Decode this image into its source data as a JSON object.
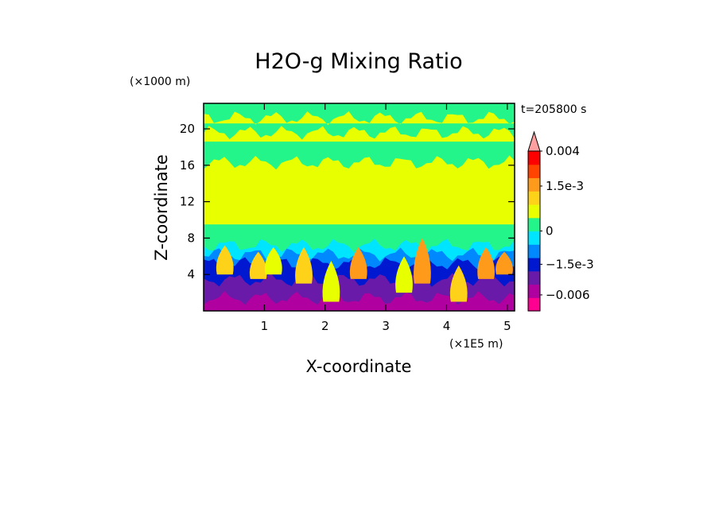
{
  "chart_data": {
    "type": "heatmap",
    "title": "H2O-g Mixing Ratio",
    "xlabel": "X-coordinate",
    "ylabel": "Z-coordinate",
    "x_scale_label": "(×1E5 m)",
    "y_scale_label": "(×1000 m)",
    "time_label": "t=205800 s",
    "xlim": [
      0,
      5.12
    ],
    "ylim": [
      0,
      22.8
    ],
    "x_ticks": [
      "1",
      "2",
      "3",
      "4",
      "5"
    ],
    "y_ticks": [
      "4",
      "8",
      "12",
      "16",
      "20"
    ],
    "x_tick_values": [
      1,
      2,
      3,
      4,
      5
    ],
    "y_tick_values": [
      4,
      8,
      12,
      16,
      20
    ],
    "colorbar": {
      "labels": [
        "0.004",
        "1.5e-3",
        "0",
        "−1.5e-3",
        "−0.006"
      ],
      "label_values": [
        0.004,
        0.0015,
        0,
        -0.0015,
        -0.006
      ],
      "levels": [
        {
          "color": "#ff0090",
          "from": -0.009,
          "to": -0.0065
        },
        {
          "color": "#b0009f",
          "from": -0.0065,
          "to": -0.004
        },
        {
          "color": "#6a1aa8",
          "from": -0.004,
          "to": -0.002
        },
        {
          "color": "#0018d0",
          "from": -0.002,
          "to": -0.001
        },
        {
          "color": "#0088ff",
          "from": -0.001,
          "to": -0.0005
        },
        {
          "color": "#00e5ff",
          "from": -0.0005,
          "to": 0
        },
        {
          "color": "#23f58a",
          "from": 0,
          "to": 0.0003
        },
        {
          "color": "#e8ff00",
          "from": 0.0003,
          "to": 0.0007
        },
        {
          "color": "#ffd21a",
          "from": 0.0007,
          "to": 0.0012
        },
        {
          "color": "#ff9a1a",
          "from": 0.0012,
          "to": 0.002
        },
        {
          "color": "#ff4400",
          "from": 0.002,
          "to": 0.003
        },
        {
          "color": "#ff0000",
          "from": 0.003,
          "to": 0.004
        },
        {
          "color": "#ff9fa0",
          "from": 0.004,
          "to": 0.005
        }
      ]
    },
    "field_layers": [
      {
        "color": "#23f58a",
        "z_bottom": 0,
        "z_top": 22.8
      },
      {
        "color": "#e8ff00",
        "z_bottom": 9.5,
        "z_top": 16.3
      },
      {
        "color": "#e8ff00",
        "z_bottom": 18.6,
        "z_top": 19.6
      },
      {
        "color": "#e8ff00",
        "z_bottom": 20.6,
        "z_top": 21.2
      },
      {
        "color": "#00e5ff",
        "z_bottom": 0,
        "z_top": 7.2
      },
      {
        "color": "#0088ff",
        "z_bottom": 0,
        "z_top": 6.2
      },
      {
        "color": "#0018d0",
        "z_bottom": 0,
        "z_top": 5.2
      },
      {
        "color": "#6a1aa8",
        "z_bottom": 0,
        "z_top": 3.4
      },
      {
        "color": "#b0009f",
        "z_bottom": 0,
        "z_top": 1.4
      }
    ],
    "plumes": [
      {
        "x": 0.35,
        "z_bottom": 4.0,
        "z_top": 7.2,
        "color": "#ffd21a"
      },
      {
        "x": 0.9,
        "z_bottom": 3.5,
        "z_top": 6.5,
        "color": "#ffd21a"
      },
      {
        "x": 1.15,
        "z_bottom": 4.0,
        "z_top": 7.0,
        "color": "#e8ff00"
      },
      {
        "x": 1.65,
        "z_bottom": 3.0,
        "z_top": 7.0,
        "color": "#ffd21a"
      },
      {
        "x": 2.1,
        "z_bottom": 1.0,
        "z_top": 5.5,
        "color": "#e8ff00"
      },
      {
        "x": 2.55,
        "z_bottom": 3.5,
        "z_top": 7.0,
        "color": "#ff9a1a"
      },
      {
        "x": 3.3,
        "z_bottom": 2.0,
        "z_top": 6.0,
        "color": "#e8ff00"
      },
      {
        "x": 3.6,
        "z_bottom": 3.0,
        "z_top": 8.0,
        "color": "#ff9a1a"
      },
      {
        "x": 4.2,
        "z_bottom": 1.0,
        "z_top": 5.0,
        "color": "#ffd21a"
      },
      {
        "x": 4.65,
        "z_bottom": 3.5,
        "z_top": 7.0,
        "color": "#ff9a1a"
      },
      {
        "x": 4.95,
        "z_bottom": 4.0,
        "z_top": 6.5,
        "color": "#ff9a1a"
      }
    ]
  }
}
